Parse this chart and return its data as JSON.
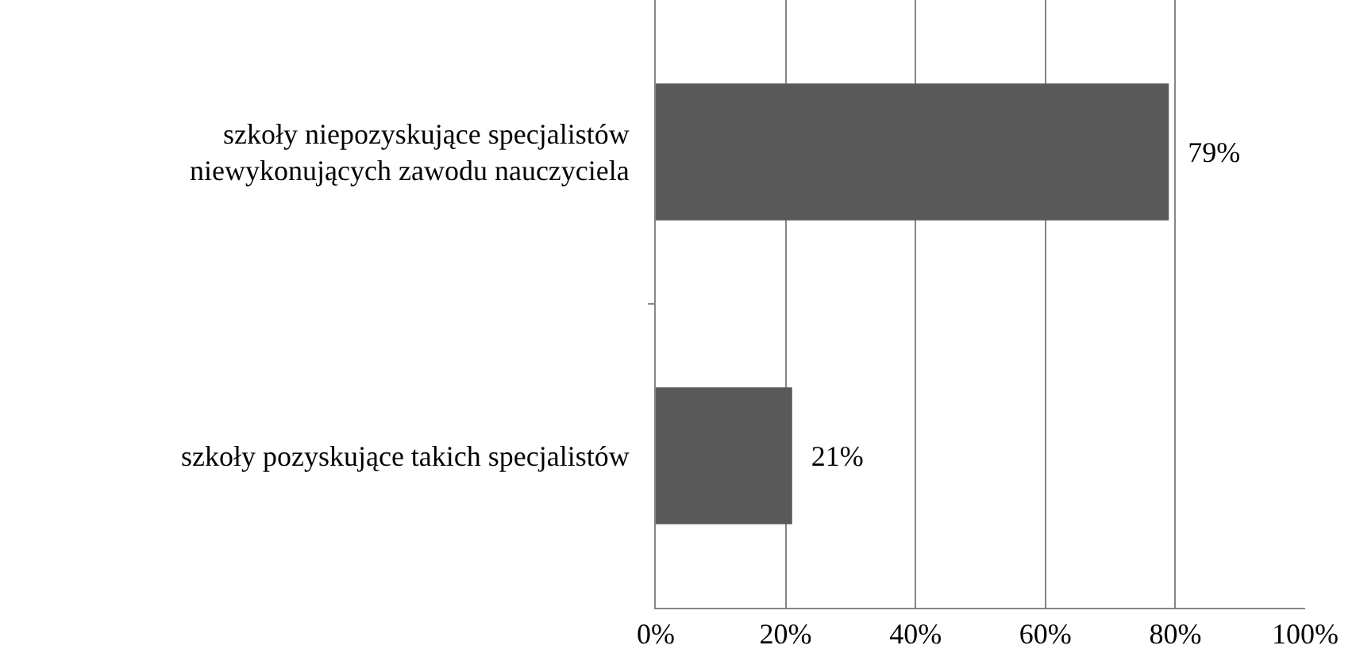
{
  "chart_data": {
    "type": "bar",
    "orientation": "horizontal",
    "categories": [
      "szkoły niepozyskujące specjalistów\nniewykonujących zawodu nauczyciela",
      "szkoły pozyskujące takich specjalistów"
    ],
    "values": [
      79,
      21
    ],
    "value_labels": [
      "79%",
      "21%"
    ],
    "color": "#595959",
    "xlim": [
      0,
      100
    ],
    "xticks": [
      {
        "value": 0,
        "label": "0%"
      },
      {
        "value": 20,
        "label": "20%"
      },
      {
        "value": 40,
        "label": "40%"
      },
      {
        "value": 60,
        "label": "60%"
      },
      {
        "value": 80,
        "label": "80%"
      },
      {
        "value": 100,
        "label": "100%"
      }
    ],
    "grid": "x"
  }
}
